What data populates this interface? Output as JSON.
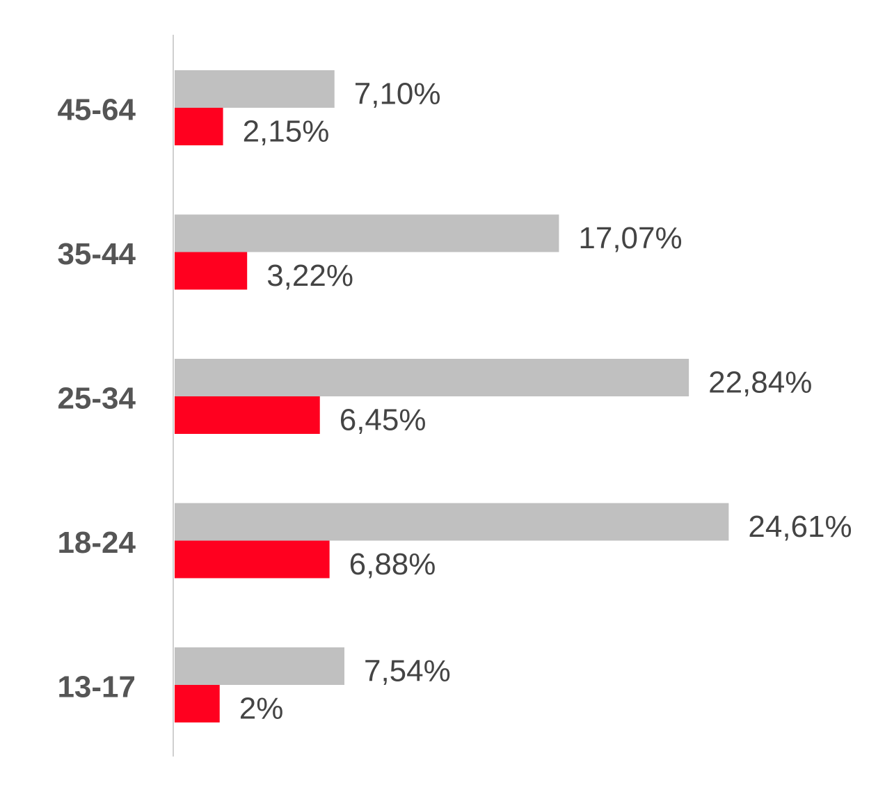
{
  "chart_data": {
    "type": "hbar",
    "categories": [
      "45-64",
      "35-44",
      "25-34",
      "18-24",
      "13-17"
    ],
    "series": [
      {
        "color": "#c0c0c0",
        "values": [
          7.1,
          17.07,
          22.84,
          24.61,
          7.54
        ],
        "value_labels": [
          "7,10%",
          "17,07%",
          "22,84%",
          "24,61%",
          "7,54%"
        ]
      },
      {
        "color": "#ff001f",
        "values": [
          2.15,
          3.22,
          6.45,
          6.88,
          2
        ],
        "value_labels": [
          "2,15%",
          "3,22%",
          "6,45%",
          "6,88%",
          "2%"
        ]
      }
    ],
    "xlim": [
      0,
      25
    ]
  }
}
